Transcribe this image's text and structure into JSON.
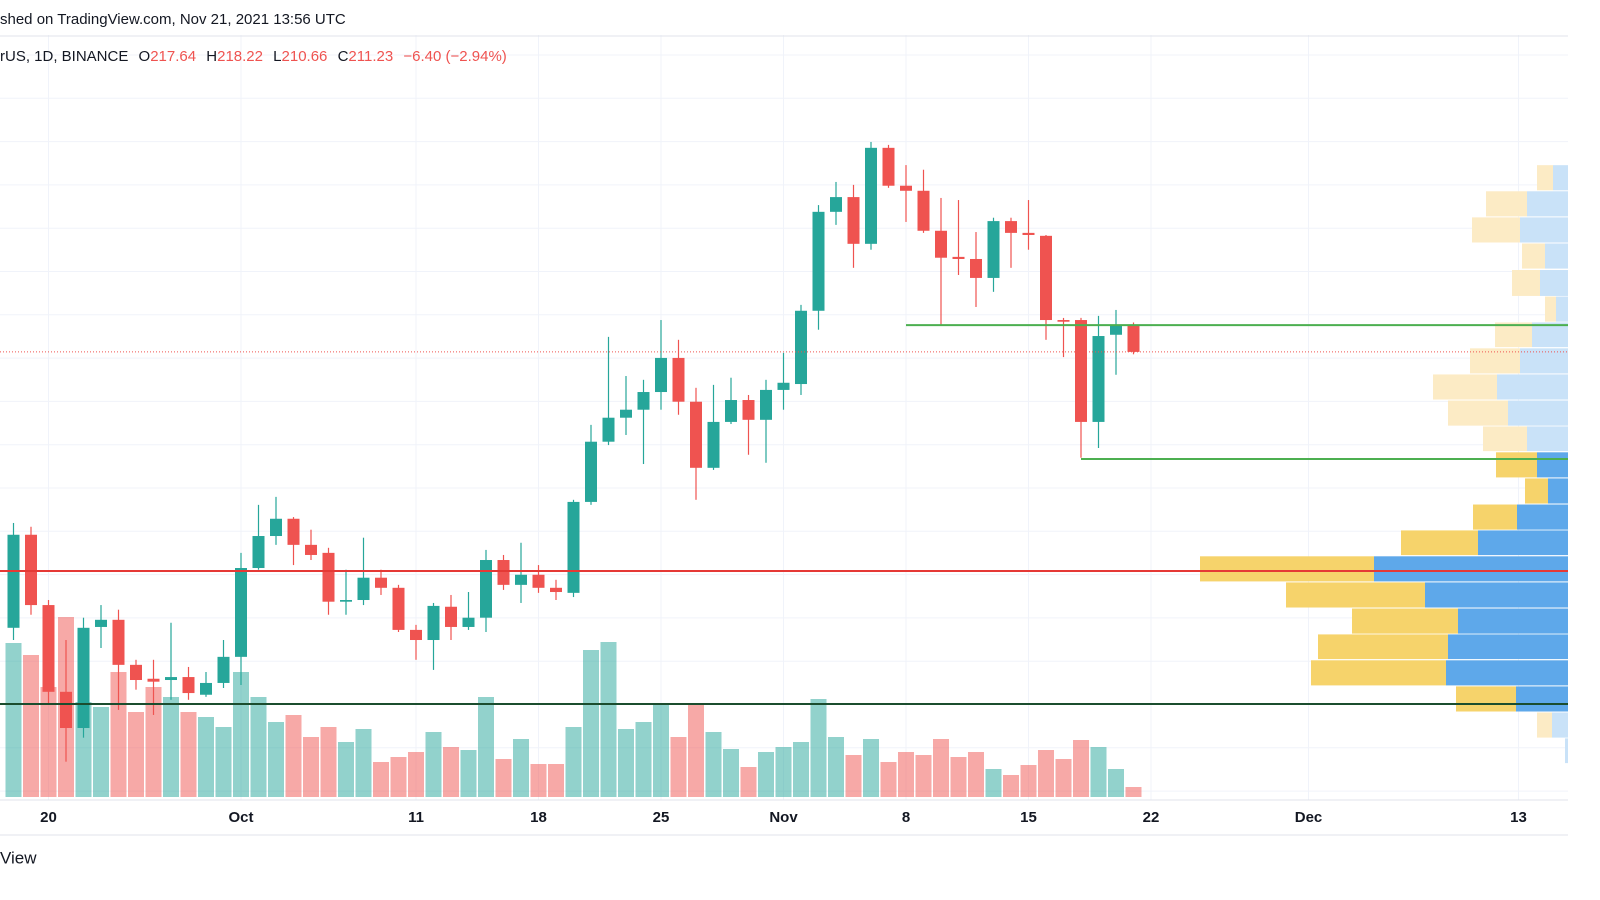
{
  "chart_data": {
    "type": "candlestick",
    "published": "shed on TradingView.com, Nov 21, 2021 13:56 UTC",
    "symbol": "rUS, 1D, BINANCE",
    "legend_labels": {
      "open": "O",
      "high": "H",
      "low": "L",
      "close": "C"
    },
    "change": {
      "value": -6.4,
      "label": "−6.40"
    },
    "change_pct": {
      "value": -2.94,
      "label": "(−2.94%)"
    },
    "footer": "View",
    "up_color": "#26a69a",
    "down_color": "#ef5350",
    "x": [
      "2021-09-18",
      "2021-09-19",
      "2021-09-20",
      "2021-09-21",
      "2021-09-22",
      "2021-09-23",
      "2021-09-24",
      "2021-09-25",
      "2021-09-26",
      "2021-09-27",
      "2021-09-28",
      "2021-09-29",
      "2021-09-30",
      "2021-10-01",
      "2021-10-02",
      "2021-10-03",
      "2021-10-04",
      "2021-10-05",
      "2021-10-06",
      "2021-10-07",
      "2021-10-08",
      "2021-10-09",
      "2021-10-10",
      "2021-10-11",
      "2021-10-12",
      "2021-10-13",
      "2021-10-14",
      "2021-10-15",
      "2021-10-16",
      "2021-10-17",
      "2021-10-18",
      "2021-10-19",
      "2021-10-20",
      "2021-10-21",
      "2021-10-22",
      "2021-10-23",
      "2021-10-24",
      "2021-10-25",
      "2021-10-26",
      "2021-10-27",
      "2021-10-28",
      "2021-10-29",
      "2021-10-30",
      "2021-10-31",
      "2021-11-01",
      "2021-11-02",
      "2021-11-03",
      "2021-11-04",
      "2021-11-05",
      "2021-11-06",
      "2021-11-07",
      "2021-11-08",
      "2021-11-09",
      "2021-11-10",
      "2021-11-11",
      "2021-11-12",
      "2021-11-13",
      "2021-11-14",
      "2021-11-15",
      "2021-11-16",
      "2021-11-17",
      "2021-11-18",
      "2021-11-19",
      "2021-11-20",
      "2021-11-21"
    ],
    "open": [
      145.7,
      167.8,
      151.1,
      130.5,
      121.9,
      145.9,
      147.6,
      136.9,
      133.6,
      133.3,
      134.0,
      129.8,
      132.6,
      138.8,
      159.9,
      167.5,
      171.6,
      165.4,
      163.5,
      151.9,
      152.3,
      157.6,
      155.2,
      145.2,
      142.8,
      150.7,
      145.9,
      148.1,
      161.8,
      155.9,
      158.3,
      155.2,
      154.0,
      175.6,
      189.9,
      195.6,
      197.5,
      201.7,
      209.8,
      199.4,
      183.7,
      194.6,
      199.8,
      195.1,
      202.2,
      203.6,
      221.0,
      244.5,
      248.0,
      236.9,
      259.7,
      250.7,
      249.5,
      240.0,
      233.8,
      233.3,
      228.8,
      242.3,
      239.5,
      238.8,
      218.8,
      218.8,
      194.6,
      215.3,
      217.64
    ],
    "high": [
      170.6,
      169.7,
      152.3,
      142.8,
      148.1,
      151.1,
      150.0,
      138.1,
      138.1,
      146.9,
      136.4,
      135.2,
      142.8,
      163.5,
      174.9,
      176.8,
      172.0,
      169.0,
      164.7,
      159.5,
      167.1,
      159.5,
      155.9,
      146.4,
      151.6,
      153.5,
      154.2,
      164.2,
      163.0,
      165.9,
      160.6,
      157.1,
      176.1,
      193.9,
      214.8,
      205.5,
      204.6,
      218.8,
      214.1,
      202.7,
      203.4,
      205.1,
      201.0,
      204.6,
      211.0,
      222.4,
      246.1,
      251.6,
      250.9,
      261.1,
      260.4,
      255.6,
      254.5,
      247.8,
      247.3,
      239.7,
      243.1,
      243.1,
      247.3,
      239.0,
      219.3,
      219.3,
      219.8,
      221.2,
      218.22
    ],
    "low": [
      142.8,
      148.8,
      127.4,
      113.9,
      119.6,
      140.9,
      126.2,
      131.0,
      125.0,
      128.6,
      128.6,
      129.3,
      131.4,
      132.1,
      159.5,
      165.4,
      160.6,
      161.8,
      148.8,
      148.8,
      151.1,
      153.5,
      144.7,
      138.1,
      135.7,
      142.8,
      145.2,
      144.7,
      154.7,
      151.6,
      154.0,
      152.3,
      153.0,
      174.9,
      189.1,
      191.5,
      184.6,
      197.5,
      196.3,
      176.1,
      183.2,
      194.1,
      186.8,
      184.9,
      197.5,
      201.0,
      216.5,
      241.4,
      231.2,
      235.5,
      250.2,
      242.1,
      239.5,
      217.6,
      229.5,
      221.9,
      225.5,
      231.2,
      235.5,
      214.1,
      210.0,
      186.1,
      188.4,
      205.8,
      210.66
    ],
    "close": [
      167.8,
      151.1,
      130.5,
      121.9,
      145.7,
      147.6,
      136.9,
      133.3,
      132.9,
      134.0,
      130.2,
      132.6,
      138.8,
      159.9,
      167.5,
      171.6,
      165.4,
      163.0,
      151.9,
      152.3,
      157.6,
      155.2,
      145.2,
      142.8,
      150.9,
      145.9,
      148.1,
      161.8,
      155.9,
      158.3,
      155.2,
      154.2,
      175.6,
      189.9,
      195.6,
      197.5,
      201.7,
      209.8,
      199.4,
      183.7,
      194.6,
      199.8,
      195.1,
      202.2,
      203.9,
      221.0,
      244.5,
      248.0,
      236.9,
      259.7,
      250.7,
      249.5,
      240.0,
      233.6,
      233.3,
      228.8,
      242.3,
      239.5,
      239.0,
      218.8,
      218.4,
      194.6,
      215.0,
      217.6,
      211.23
    ],
    "volume": [
      154,
      142,
      110,
      180,
      95,
      90,
      125,
      85,
      110,
      100,
      85,
      80,
      70,
      125,
      100,
      75,
      82,
      60,
      70,
      55,
      68,
      35,
      40,
      45,
      65,
      50,
      47,
      100,
      38,
      58,
      33,
      33,
      70,
      147,
      155,
      68,
      75,
      92,
      60,
      92,
      65,
      48,
      30,
      45,
      50,
      55,
      98,
      60,
      42,
      58,
      35,
      45,
      42,
      58,
      40,
      45,
      28,
      22,
      32,
      47,
      38,
      57,
      50,
      28,
      10
    ],
    "volume_lim": [
      0,
      180
    ],
    "xlim": [
      "2021-09-17",
      "2021-12-17"
    ],
    "xticks": [
      {
        "value": "2021-09-20",
        "label": "20"
      },
      {
        "value": "2021-10-01",
        "label": "Oct"
      },
      {
        "value": "2021-10-11",
        "label": "11"
      },
      {
        "value": "2021-10-18",
        "label": "18"
      },
      {
        "value": "2021-10-25",
        "label": "25"
      },
      {
        "value": "2021-11-01",
        "label": "Nov"
      },
      {
        "value": "2021-11-08",
        "label": "8"
      },
      {
        "value": "2021-11-15",
        "label": "15"
      },
      {
        "value": "2021-11-22",
        "label": "22"
      },
      {
        "value": "2021-12-01",
        "label": "Dec"
      },
      {
        "value": "2021-12-13",
        "label": "13"
      }
    ],
    "ylim": [
      104.8,
      286.5
    ],
    "grid": true,
    "levels": [
      {
        "value": 217.6,
        "color": "#4caf50",
        "from": "2021-11-08"
      },
      {
        "value": 185.8,
        "color": "#4caf50",
        "from": "2021-11-18"
      },
      {
        "value": 159.2,
        "color": "#e53935"
      },
      {
        "value": 127.6,
        "color": "#1b4d2e"
      }
    ],
    "profile": {
      "up_color": "#5ea8ea",
      "down_color": "#f6d36b",
      "up_color_outside": "#c9e2f8",
      "down_color_outside": "#fcebc5",
      "rows": [
        {
          "price": 116.5,
          "up": 3,
          "down": 0,
          "value_area": false
        },
        {
          "price": 122.6,
          "up": 16,
          "down": 15,
          "value_area": false
        },
        {
          "price": 128.8,
          "up": 52,
          "down": 60,
          "value_area": true
        },
        {
          "price": 135.0,
          "up": 122,
          "down": 135,
          "value_area": true
        },
        {
          "price": 141.2,
          "up": 120,
          "down": 130,
          "value_area": true
        },
        {
          "price": 147.3,
          "up": 110,
          "down": 106,
          "value_area": true
        },
        {
          "price": 153.5,
          "up": 143,
          "down": 139,
          "value_area": true
        },
        {
          "price": 159.7,
          "up": 194,
          "down": 174,
          "value_area": true
        },
        {
          "price": 165.9,
          "up": 90,
          "down": 77,
          "value_area": true
        },
        {
          "price": 172.0,
          "up": 51,
          "down": 44,
          "value_area": true
        },
        {
          "price": 178.2,
          "up": 20,
          "down": 23,
          "value_area": true
        },
        {
          "price": 184.4,
          "up": 31,
          "down": 41,
          "value_area": true
        },
        {
          "price": 190.6,
          "up": 41,
          "down": 44,
          "value_area": false
        },
        {
          "price": 196.7,
          "up": 60,
          "down": 60,
          "value_area": false
        },
        {
          "price": 202.9,
          "up": 71,
          "down": 64,
          "value_area": false
        },
        {
          "price": 209.1,
          "up": 48,
          "down": 50,
          "value_area": false
        },
        {
          "price": 215.3,
          "up": 36,
          "down": 37,
          "value_area": false
        },
        {
          "price": 221.4,
          "up": 12,
          "down": 11,
          "value_area": false
        },
        {
          "price": 227.6,
          "up": 28,
          "down": 28,
          "value_area": false
        },
        {
          "price": 234.0,
          "up": 23,
          "down": 23,
          "value_area": false
        },
        {
          "price": 240.2,
          "up": 48,
          "down": 48,
          "value_area": false
        },
        {
          "price": 246.4,
          "up": 41,
          "down": 41,
          "value_area": false
        },
        {
          "price": 252.6,
          "up": 15,
          "down": 16,
          "value_area": false
        }
      ]
    }
  }
}
